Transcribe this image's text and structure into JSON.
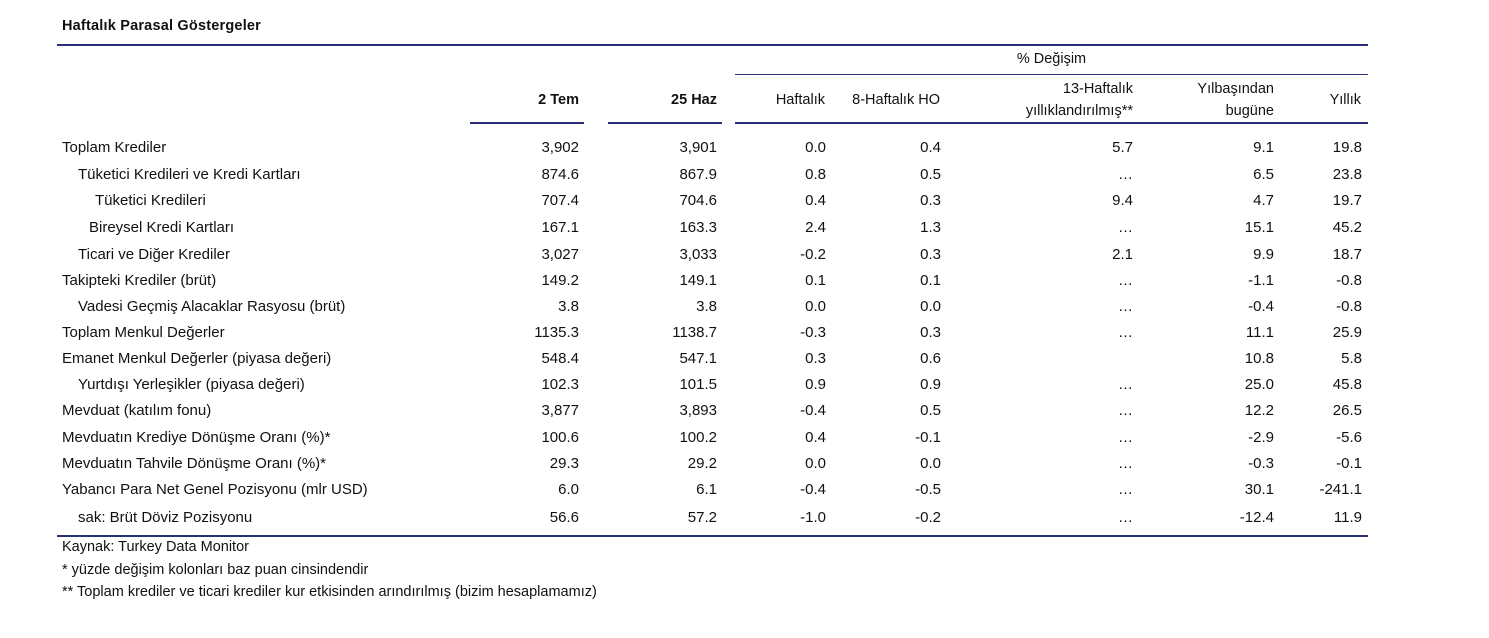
{
  "title": "Haftalık Parasal Göstergeler",
  "headers": {
    "group": "% Değişim",
    "col_2tem": "2 Tem",
    "col_25haz": "25 Haz",
    "col_haftalik": "Haftalık",
    "col_8hafta": "8-Haftalık HO",
    "col_13hafta_line1": "13-Haftalık",
    "col_13hafta_line2": "yıllıklandırılmış**",
    "col_ytd_line1": "Yılbaşından",
    "col_ytd_line2": "bugüne",
    "col_yillik": "Yıllık"
  },
  "rows": [
    {
      "label": "Toplam Krediler",
      "c1": "3,902",
      "c2": "3,901",
      "c3": "0.0",
      "c4": "0.4",
      "c5": "5.7",
      "c6": "9.1",
      "c7": "19.8"
    },
    {
      "label": "Tüketici Kredileri ve Kredi Kartları",
      "c1": "874.6",
      "c2": "867.9",
      "c3": "0.8",
      "c4": "0.5",
      "c5": "…",
      "c6": "6.5",
      "c7": "23.8"
    },
    {
      "label": "Tüketici Kredileri",
      "c1": "707.4",
      "c2": "704.6",
      "c3": "0.4",
      "c4": "0.3",
      "c5": "9.4",
      "c6": "4.7",
      "c7": "19.7"
    },
    {
      "label": "Bireysel Kredi Kartları",
      "c1": "167.1",
      "c2": "163.3",
      "c3": "2.4",
      "c4": "1.3",
      "c5": "…",
      "c6": "15.1",
      "c7": "45.2"
    },
    {
      "label": "Ticari ve Diğer Krediler",
      "c1": "3,027",
      "c2": "3,033",
      "c3": "-0.2",
      "c4": "0.3",
      "c5": "2.1",
      "c6": "9.9",
      "c7": "18.7"
    },
    {
      "label": "Takipteki Krediler (brüt)",
      "c1": "149.2",
      "c2": "149.1",
      "c3": "0.1",
      "c4": "0.1",
      "c5": "…",
      "c6": "-1.1",
      "c7": "-0.8"
    },
    {
      "label": "Vadesi Geçmiş Alacaklar Rasyosu (brüt)",
      "c1": "3.8",
      "c2": "3.8",
      "c3": "0.0",
      "c4": "0.0",
      "c5": "…",
      "c6": "-0.4",
      "c7": "-0.8"
    },
    {
      "label": "Toplam Menkul Değerler",
      "c1": "1135.3",
      "c2": "1138.7",
      "c3": "-0.3",
      "c4": "0.3",
      "c5": "…",
      "c6": "11.1",
      "c7": "25.9"
    },
    {
      "label": "Emanet Menkul Değerler (piyasa değeri)",
      "c1": "548.4",
      "c2": "547.1",
      "c3": "0.3",
      "c4": "0.6",
      "c5": "",
      "c6": "10.8",
      "c7": "5.8"
    },
    {
      "label": "Yurtdışı Yerleşikler (piyasa değeri)",
      "c1": "102.3",
      "c2": "101.5",
      "c3": "0.9",
      "c4": "0.9",
      "c5": "…",
      "c6": "25.0",
      "c7": "45.8"
    },
    {
      "label": "Mevduat (katılım fonu)",
      "c1": "3,877",
      "c2": "3,893",
      "c3": "-0.4",
      "c4": "0.5",
      "c5": "…",
      "c6": "12.2",
      "c7": "26.5"
    },
    {
      "label": "Mevduatın Krediye Dönüşme Oranı (%)*",
      "c1": "100.6",
      "c2": "100.2",
      "c3": "0.4",
      "c4": "-0.1",
      "c5": "…",
      "c6": "-2.9",
      "c7": "-5.6"
    },
    {
      "label": "Mevduatın Tahvile Dönüşme Oranı (%)*",
      "c1": "29.3",
      "c2": "29.2",
      "c3": "0.0",
      "c4": "0.0",
      "c5": "…",
      "c6": "-0.3",
      "c7": "-0.1"
    },
    {
      "label": "Yabancı Para Net Genel Pozisyonu (mlr USD)",
      "c1": "6.0",
      "c2": "6.1",
      "c3": "-0.4",
      "c4": "-0.5",
      "c5": "…",
      "c6": "30.1",
      "c7": "-241.1"
    },
    {
      "label": "sak: Brüt Döviz Pozisyonu",
      "c1": "56.6",
      "c2": "57.2",
      "c3": "-1.0",
      "c4": "-0.2",
      "c5": "…",
      "c6": "-12.4",
      "c7": "11.9"
    }
  ],
  "footnotes": [
    "Kaynak: Turkey Data Monitor",
    "* yüzde değişim kolonları baz puan cinsindendir",
    "** Toplam krediler ve ticari krediler kur etkisinden arındırılmış (bizim hesaplamamız)"
  ]
}
